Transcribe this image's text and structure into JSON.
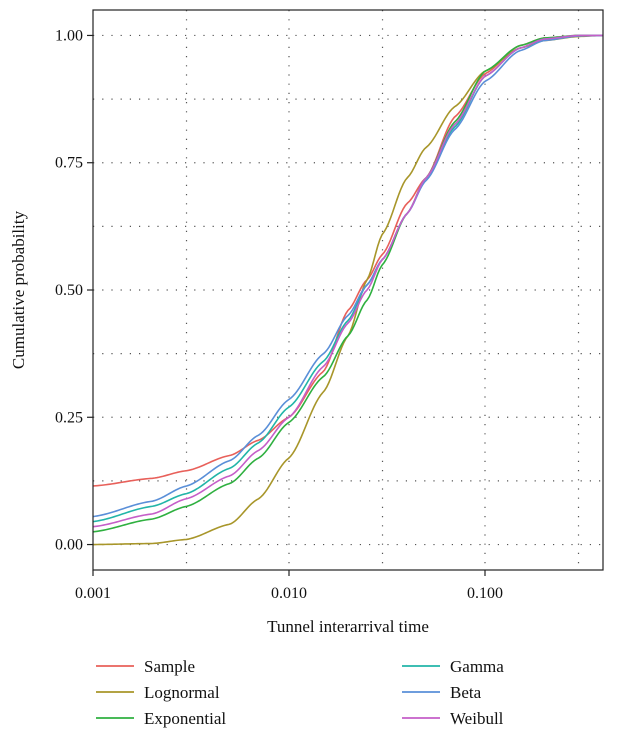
{
  "chart_data": {
    "type": "line",
    "title": "",
    "xlabel": "Tunnel interarrival time",
    "ylabel": "Cumulative probability",
    "x_scale": "log",
    "xlim": [
      0.001,
      0.4
    ],
    "ylim": [
      -0.05,
      1.05
    ],
    "x_ticks": [
      0.001,
      0.01,
      0.1
    ],
    "x_tick_labels": [
      "0.001",
      "0.010",
      "0.100"
    ],
    "y_ticks": [
      0.0,
      0.25,
      0.5,
      0.75,
      1.0
    ],
    "y_tick_labels": [
      "0.00",
      "0.25",
      "0.50",
      "0.75",
      "1.00"
    ],
    "grid": "dotted, both axes",
    "legend_position": "bottom",
    "x": [
      0.001,
      0.002,
      0.003,
      0.005,
      0.007,
      0.01,
      0.015,
      0.02,
      0.025,
      0.03,
      0.04,
      0.05,
      0.07,
      0.1,
      0.15,
      0.2,
      0.3,
      0.4
    ],
    "series": [
      {
        "name": "Sample",
        "color": "#e8605a",
        "values": [
          0.115,
          0.13,
          0.145,
          0.175,
          0.205,
          0.25,
          0.34,
          0.46,
          0.52,
          0.57,
          0.67,
          0.72,
          0.84,
          0.925,
          0.98,
          0.995,
          1.0,
          1.0
        ]
      },
      {
        "name": "Lognormal",
        "color": "#a8962a",
        "values": [
          0.0,
          0.002,
          0.01,
          0.04,
          0.09,
          0.17,
          0.3,
          0.41,
          0.52,
          0.61,
          0.72,
          0.78,
          0.86,
          0.93,
          0.975,
          0.99,
          0.998,
          1.0
        ]
      },
      {
        "name": "Exponential",
        "color": "#2fb040",
        "values": [
          0.025,
          0.05,
          0.075,
          0.12,
          0.17,
          0.24,
          0.33,
          0.41,
          0.48,
          0.55,
          0.65,
          0.72,
          0.83,
          0.93,
          0.98,
          0.995,
          1.0,
          1.0
        ]
      },
      {
        "name": "Gamma",
        "color": "#22b5a8",
        "values": [
          0.045,
          0.075,
          0.1,
          0.15,
          0.2,
          0.27,
          0.36,
          0.44,
          0.51,
          0.56,
          0.65,
          0.72,
          0.82,
          0.92,
          0.975,
          0.993,
          1.0,
          1.0
        ]
      },
      {
        "name": "Beta",
        "color": "#5a8fd8",
        "values": [
          0.055,
          0.085,
          0.115,
          0.165,
          0.215,
          0.285,
          0.375,
          0.45,
          0.51,
          0.56,
          0.65,
          0.715,
          0.815,
          0.91,
          0.97,
          0.99,
          0.999,
          1.0
        ]
      },
      {
        "name": "Weibull",
        "color": "#c55ec8",
        "values": [
          0.035,
          0.06,
          0.09,
          0.135,
          0.185,
          0.25,
          0.35,
          0.435,
          0.5,
          0.56,
          0.65,
          0.72,
          0.825,
          0.92,
          0.975,
          0.993,
          1.0,
          1.0
        ]
      }
    ]
  }
}
